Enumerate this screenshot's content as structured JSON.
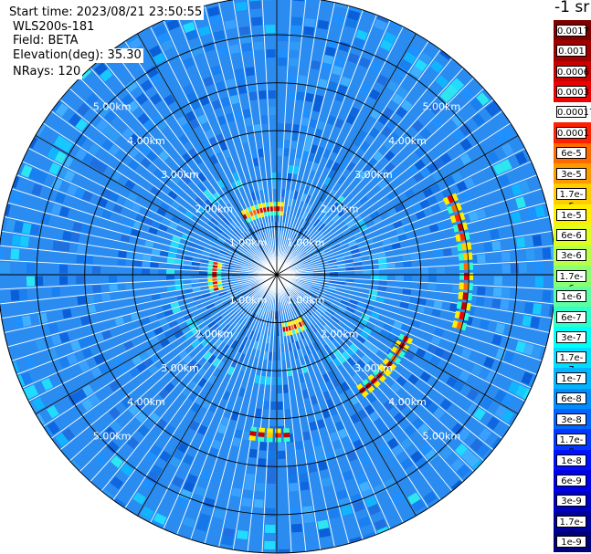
{
  "header": {
    "start_time": "Start time: 2023/08/21 23:50:55",
    "instrument": "WLS200s-181",
    "field": "Field: BETA",
    "elevation": "Elevation(deg): 35.30",
    "nrays": "NRays: 120"
  },
  "colorbar": {
    "title": "-1 sr",
    "labels": [
      "0.0017",
      "0.001",
      "0.0006",
      "0.0003",
      "0.00017",
      "0.0001",
      "6e-5",
      "3e-5",
      "1.7e-5",
      "1e-5",
      "6e-6",
      "3e-6",
      "1.7e-6",
      "1e-6",
      "6e-7",
      "3e-7",
      "1.7e-7",
      "1e-7",
      "6e-8",
      "3e-8",
      "1.7e-8",
      "1e-8",
      "6e-9",
      "3e-9",
      "1.7e-9",
      "1e-9"
    ],
    "colors": [
      "#7f0000",
      "#a00000",
      "#c80000",
      "#ee0000",
      "#ffffff",
      "#ff2000",
      "#ff6a00",
      "#ff9900",
      "#ffcc00",
      "#ffee00",
      "#e0ff1f",
      "#b8ff47",
      "#8cff73",
      "#5effa0",
      "#30ffcc",
      "#00fff6",
      "#00ddff",
      "#00b4ff",
      "#008cff",
      "#0064ff",
      "#0038ff",
      "#0010ff",
      "#0000e6",
      "#0000c0",
      "#00009a",
      "#000078"
    ]
  },
  "range_rings": [
    "1.00km",
    "2.00km",
    "3.00km",
    "4.00km",
    "5.00km"
  ],
  "ppi": {
    "nrays": 120,
    "max_range_km": 5.8,
    "features": [
      {
        "name": "north-arc",
        "range_km": 1.33,
        "az_from": -30,
        "az_to": 5,
        "level": "high"
      },
      {
        "name": "east-arc",
        "range_km": 3.9,
        "az_from": 65,
        "az_to": 105,
        "level": "high"
      },
      {
        "name": "southeast-arc",
        "range_km": 2.95,
        "az_from": 115,
        "az_to": 145,
        "level": "high"
      },
      {
        "name": "south-inner-arc",
        "range_km": 1.1,
        "az_from": 150,
        "az_to": 172,
        "level": "high"
      },
      {
        "name": "south-outer-arc",
        "range_km": 3.3,
        "az_from": 175,
        "az_to": 190,
        "level": "high"
      },
      {
        "name": "west-arc",
        "range_km": 1.25,
        "az_from": 255,
        "az_to": 280,
        "level": "high"
      }
    ]
  }
}
